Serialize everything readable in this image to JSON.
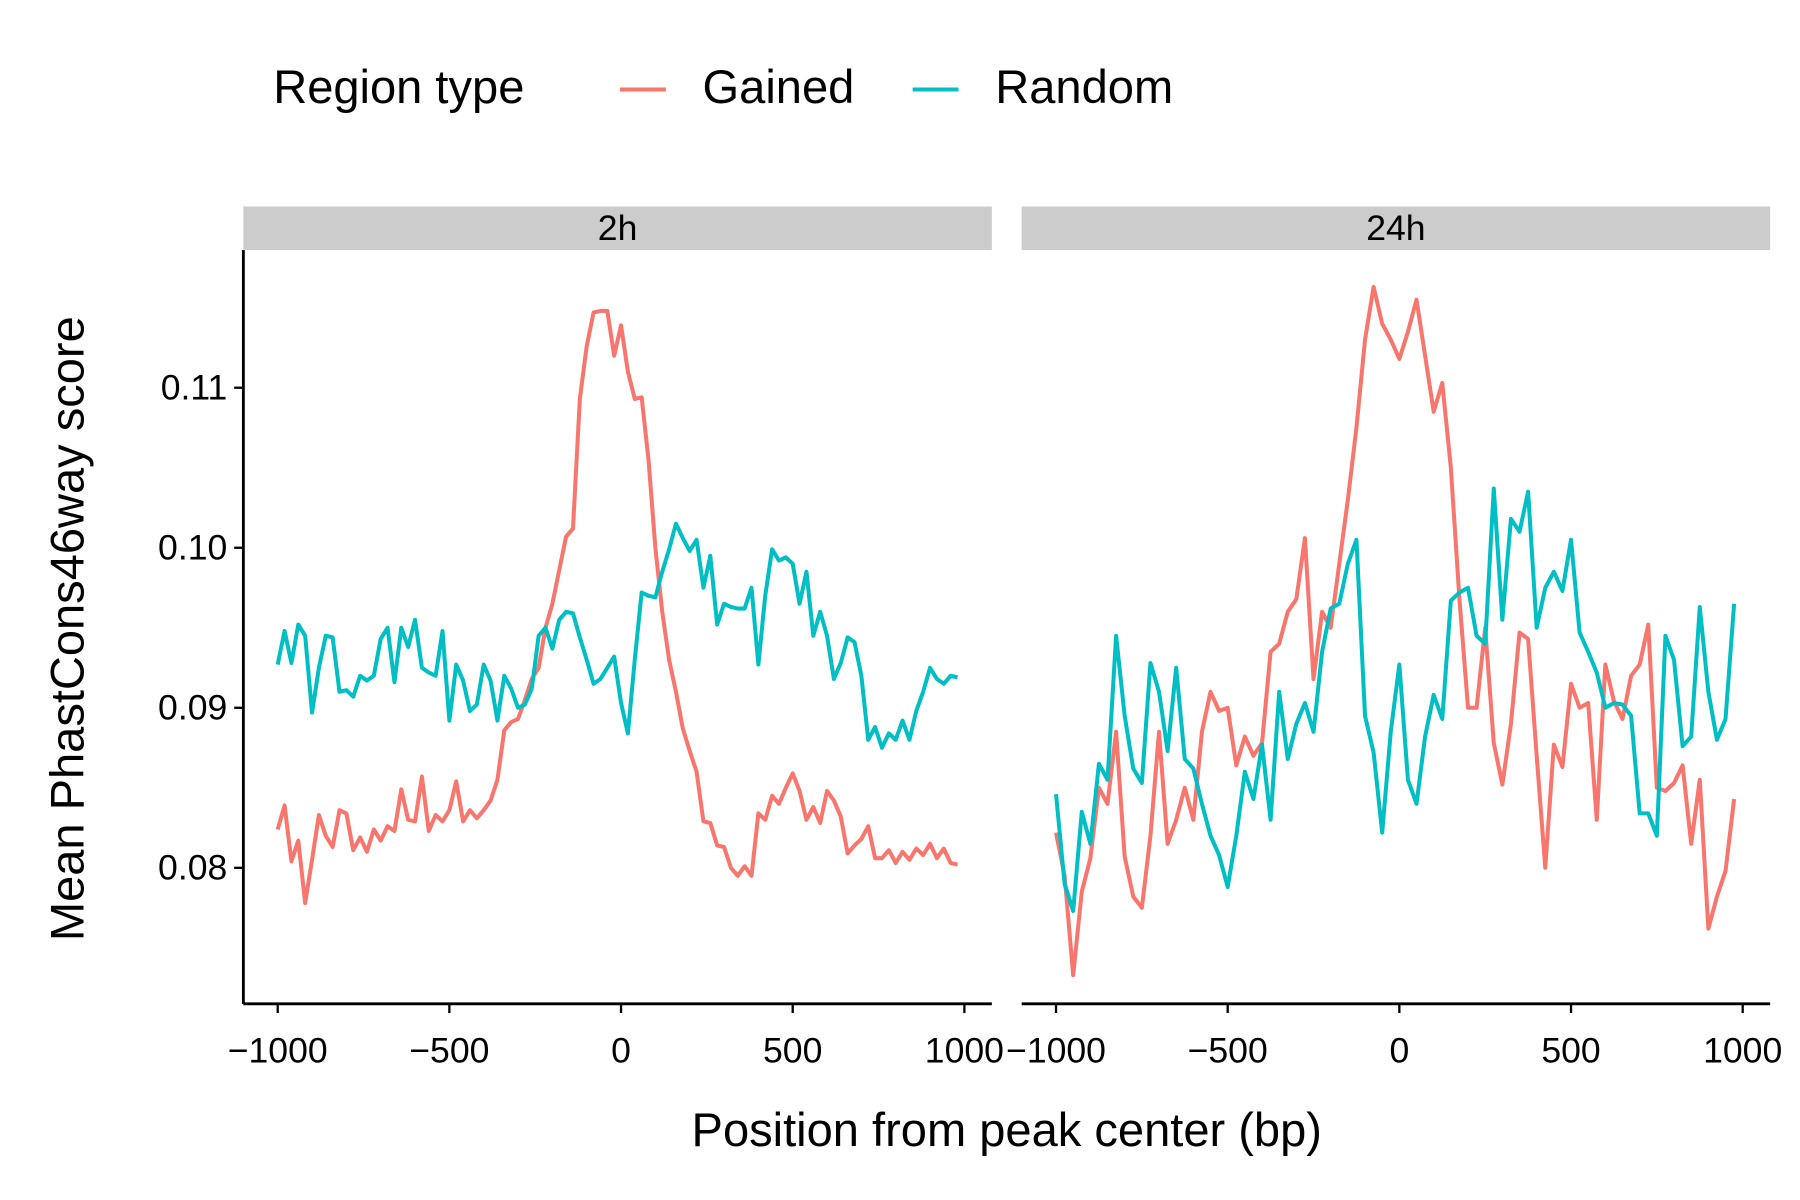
{
  "legend": {
    "title": "Region type"
  },
  "x_label": "Position from peak center (bp)",
  "y_label": "Mean PhastCons46way score",
  "chart_data": [
    {
      "type": "line",
      "title": "2h",
      "x": [
        -1000,
        -980,
        -960,
        -940,
        -920,
        -900,
        -880,
        -860,
        -840,
        -820,
        -800,
        -780,
        -760,
        -740,
        -720,
        -700,
        -680,
        -660,
        -640,
        -620,
        -600,
        -580,
        -560,
        -540,
        -520,
        -500,
        -480,
        -460,
        -440,
        -420,
        -400,
        -380,
        -360,
        -340,
        -320,
        -300,
        -280,
        -260,
        -240,
        -220,
        -200,
        -180,
        -160,
        -140,
        -120,
        -100,
        -80,
        -60,
        -40,
        -20,
        0,
        20,
        40,
        60,
        80,
        100,
        120,
        140,
        160,
        180,
        200,
        220,
        240,
        260,
        280,
        300,
        320,
        340,
        360,
        380,
        400,
        420,
        440,
        460,
        480,
        500,
        520,
        540,
        560,
        580,
        600,
        620,
        640,
        660,
        680,
        700,
        720,
        740,
        760,
        780,
        800,
        820,
        840,
        860,
        880,
        900,
        920,
        940,
        960,
        980
      ],
      "series": [
        {
          "name": "Gained",
          "color": "#F8766D",
          "values": [
            0.0824,
            0.0839,
            0.0804,
            0.0817,
            0.0778,
            0.0805,
            0.0833,
            0.082,
            0.0813,
            0.0836,
            0.0834,
            0.0811,
            0.0819,
            0.081,
            0.0824,
            0.0817,
            0.0826,
            0.0823,
            0.0849,
            0.083,
            0.0829,
            0.0857,
            0.0823,
            0.0833,
            0.0829,
            0.0836,
            0.0854,
            0.0829,
            0.0836,
            0.0831,
            0.0836,
            0.0842,
            0.0855,
            0.0886,
            0.0891,
            0.0893,
            0.0905,
            0.0918,
            0.0925,
            0.095,
            0.0965,
            0.0986,
            0.1007,
            0.1012,
            0.1093,
            0.1126,
            0.1147,
            0.1148,
            0.1148,
            0.112,
            0.1139,
            0.111,
            0.1093,
            0.1094,
            0.1055,
            0.1,
            0.096,
            0.093,
            0.091,
            0.0887,
            0.0873,
            0.086,
            0.0829,
            0.0828,
            0.0814,
            0.0813,
            0.08,
            0.0795,
            0.0801,
            0.0795,
            0.0834,
            0.083,
            0.0845,
            0.084,
            0.085,
            0.0859,
            0.0848,
            0.083,
            0.0838,
            0.0828,
            0.0848,
            0.0842,
            0.0832,
            0.0809,
            0.0814,
            0.0818,
            0.0826,
            0.0806,
            0.0806,
            0.0811,
            0.0803,
            0.081,
            0.0805,
            0.0812,
            0.0808,
            0.0815,
            0.0806,
            0.0812,
            0.0803,
            0.0802
          ]
        },
        {
          "name": "Random",
          "color": "#00BFC4",
          "values": [
            0.0927,
            0.0948,
            0.0928,
            0.0952,
            0.0945,
            0.0897,
            0.0925,
            0.0945,
            0.0944,
            0.091,
            0.0911,
            0.0907,
            0.092,
            0.0917,
            0.092,
            0.0943,
            0.095,
            0.0916,
            0.095,
            0.0938,
            0.0955,
            0.0925,
            0.0922,
            0.092,
            0.0948,
            0.0892,
            0.0927,
            0.0917,
            0.0898,
            0.0902,
            0.0927,
            0.0917,
            0.0892,
            0.092,
            0.0912,
            0.09,
            0.0902,
            0.0912,
            0.0945,
            0.095,
            0.0937,
            0.0955,
            0.096,
            0.0959,
            0.0944,
            0.093,
            0.0915,
            0.0918,
            0.0925,
            0.0932,
            0.0903,
            0.0884,
            0.093,
            0.0972,
            0.097,
            0.0969,
            0.0985,
            0.0999,
            0.1015,
            0.1006,
            0.0998,
            0.1005,
            0.0975,
            0.0995,
            0.0952,
            0.0965,
            0.0963,
            0.0962,
            0.0962,
            0.0975,
            0.0927,
            0.097,
            0.0999,
            0.0992,
            0.0994,
            0.099,
            0.0965,
            0.0985,
            0.0945,
            0.096,
            0.0945,
            0.0918,
            0.0928,
            0.0944,
            0.0941,
            0.092,
            0.088,
            0.0888,
            0.0875,
            0.0884,
            0.088,
            0.0892,
            0.088,
            0.0898,
            0.091,
            0.0925,
            0.0918,
            0.0915,
            0.092,
            0.0919
          ]
        }
      ],
      "xlim": [
        -1100,
        1080
      ],
      "ylim": [
        0.0715,
        0.1186
      ],
      "xticks": [
        {
          "value": -1000,
          "label": "−1000"
        },
        {
          "value": -500,
          "label": "−500"
        },
        0,
        500,
        1000
      ],
      "yticks": [
        0.08,
        0.09,
        {
          "value": 0.1,
          "label": "0.10"
        },
        0.11
      ]
    },
    {
      "type": "line",
      "title": "24h",
      "x": [
        -1000,
        -975,
        -950,
        -925,
        -900,
        -875,
        -850,
        -825,
        -800,
        -775,
        -750,
        -725,
        -700,
        -675,
        -650,
        -625,
        -600,
        -575,
        -550,
        -525,
        -500,
        -475,
        -450,
        -425,
        -400,
        -375,
        -350,
        -325,
        -300,
        -275,
        -250,
        -225,
        -200,
        -175,
        -150,
        -125,
        -100,
        -75,
        -50,
        -25,
        0,
        25,
        50,
        75,
        100,
        125,
        150,
        175,
        200,
        225,
        250,
        275,
        300,
        325,
        350,
        375,
        400,
        425,
        450,
        475,
        500,
        525,
        550,
        575,
        600,
        625,
        650,
        675,
        700,
        725,
        750,
        775,
        800,
        825,
        850,
        875,
        900,
        925,
        950,
        975
      ],
      "series": [
        {
          "color": "#F8766D",
          "values": [
            0.0822,
            0.0795,
            0.0733,
            0.0785,
            0.0806,
            0.085,
            0.084,
            0.0885,
            0.0807,
            0.0782,
            0.0775,
            0.082,
            0.0885,
            0.0815,
            0.083,
            0.085,
            0.083,
            0.0885,
            0.091,
            0.0898,
            0.09,
            0.0864,
            0.0882,
            0.087,
            0.0878,
            0.0935,
            0.094,
            0.096,
            0.0968,
            0.1006,
            0.0918,
            0.096,
            0.095,
            0.099,
            0.103,
            0.1075,
            0.113,
            0.1163,
            0.114,
            0.113,
            0.1118,
            0.1135,
            0.1155,
            0.112,
            0.1085,
            0.1103,
            0.105,
            0.0968,
            0.09,
            0.09,
            0.095,
            0.0878,
            0.0852,
            0.089,
            0.0947,
            0.0943,
            0.087,
            0.08,
            0.0877,
            0.0863,
            0.0915,
            0.09,
            0.0903,
            0.083,
            0.0927,
            0.0904,
            0.0893,
            0.092,
            0.0927,
            0.0952,
            0.085,
            0.0848,
            0.0853,
            0.0864,
            0.0815,
            0.0855,
            0.0762,
            0.0782,
            0.0798,
            0.0843
          ]
        },
        {
          "color": "#00BFC4",
          "values": [
            0.0846,
            0.079,
            0.0773,
            0.0835,
            0.0815,
            0.0865,
            0.0855,
            0.0945,
            0.0895,
            0.0862,
            0.0853,
            0.0928,
            0.091,
            0.0873,
            0.0925,
            0.0868,
            0.0862,
            0.084,
            0.082,
            0.0808,
            0.0788,
            0.082,
            0.086,
            0.0843,
            0.0877,
            0.083,
            0.091,
            0.0868,
            0.089,
            0.0903,
            0.0885,
            0.0935,
            0.0962,
            0.0965,
            0.099,
            0.1005,
            0.0895,
            0.0872,
            0.0822,
            0.0885,
            0.0927,
            0.0855,
            0.084,
            0.0882,
            0.0908,
            0.0893,
            0.0967,
            0.0972,
            0.0975,
            0.0945,
            0.094,
            0.1037,
            0.0955,
            0.1018,
            0.101,
            0.1035,
            0.095,
            0.0975,
            0.0985,
            0.0973,
            0.1005,
            0.0947,
            0.0935,
            0.0922,
            0.09,
            0.0903,
            0.0902,
            0.0895,
            0.0834,
            0.0834,
            0.082,
            0.0945,
            0.093,
            0.0876,
            0.0882,
            0.0963,
            0.091,
            0.088,
            0.0893,
            0.0965
          ]
        }
      ],
      "xlim": [
        -1100,
        1080
      ],
      "ylim": [
        0.0715,
        0.1186
      ],
      "xticks": [
        {
          "value": -1000,
          "label": "−1000"
        },
        {
          "value": -500,
          "label": "−500"
        },
        0,
        500,
        1000
      ]
    }
  ]
}
